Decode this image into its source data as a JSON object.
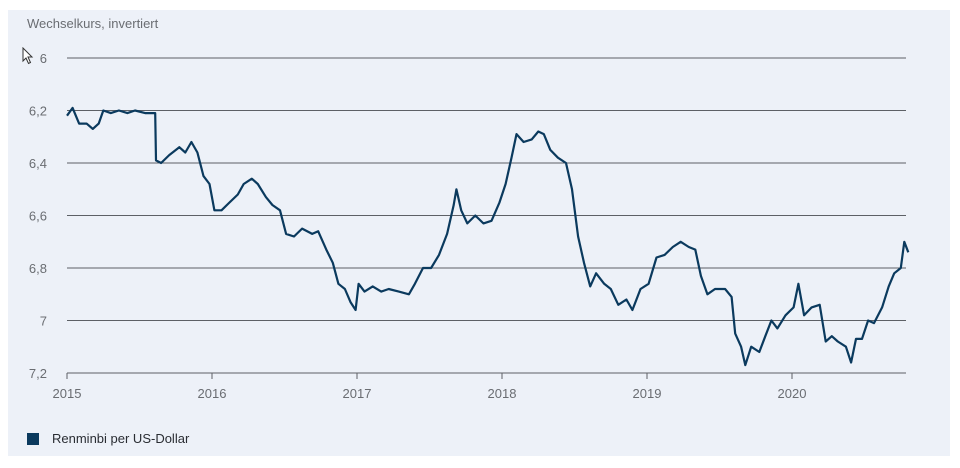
{
  "chart_data": {
    "type": "line",
    "title": "Wechselkurs, invertiert",
    "ylabel": "",
    "xlabel": "",
    "y_inverted": true,
    "ylim": [
      6,
      7.2
    ],
    "xlim": [
      "2015-01-01",
      "2020-10-25"
    ],
    "y_ticks": [
      "6",
      "6,2",
      "6,4",
      "6,6",
      "6,8",
      "7",
      "7,2"
    ],
    "x_ticks": [
      "2015",
      "2016",
      "2017",
      "2018",
      "2019",
      "2020"
    ],
    "grid": "horizontal",
    "legend_position": "bottom-left",
    "series": [
      {
        "name": "Renminbi per US-Dollar",
        "color": "#0b3a5e",
        "points": [
          [
            "2015-01-01",
            6.22
          ],
          [
            "2015-01-15",
            6.19
          ],
          [
            "2015-02-01",
            6.25
          ],
          [
            "2015-02-20",
            6.25
          ],
          [
            "2015-03-05",
            6.27
          ],
          [
            "2015-03-20",
            6.25
          ],
          [
            "2015-04-01",
            6.2
          ],
          [
            "2015-04-20",
            6.21
          ],
          [
            "2015-05-10",
            6.2
          ],
          [
            "2015-06-01",
            6.21
          ],
          [
            "2015-06-20",
            6.2
          ],
          [
            "2015-07-15",
            6.21
          ],
          [
            "2015-08-10",
            6.21
          ],
          [
            "2015-08-12",
            6.39
          ],
          [
            "2015-08-25",
            6.4
          ],
          [
            "2015-09-15",
            6.37
          ],
          [
            "2015-10-10",
            6.34
          ],
          [
            "2015-10-25",
            6.36
          ],
          [
            "2015-11-10",
            6.32
          ],
          [
            "2015-11-25",
            6.36
          ],
          [
            "2015-12-10",
            6.45
          ],
          [
            "2015-12-25",
            6.48
          ],
          [
            "2016-01-07",
            6.58
          ],
          [
            "2016-01-25",
            6.58
          ],
          [
            "2016-02-15",
            6.55
          ],
          [
            "2016-03-05",
            6.52
          ],
          [
            "2016-03-20",
            6.48
          ],
          [
            "2016-04-10",
            6.46
          ],
          [
            "2016-04-25",
            6.48
          ],
          [
            "2016-05-15",
            6.53
          ],
          [
            "2016-06-01",
            6.56
          ],
          [
            "2016-06-20",
            6.58
          ],
          [
            "2016-07-05",
            6.67
          ],
          [
            "2016-07-25",
            6.68
          ],
          [
            "2016-08-15",
            6.65
          ],
          [
            "2016-09-10",
            6.67
          ],
          [
            "2016-09-25",
            6.66
          ],
          [
            "2016-10-15",
            6.73
          ],
          [
            "2016-11-01",
            6.78
          ],
          [
            "2016-11-15",
            6.86
          ],
          [
            "2016-12-01",
            6.88
          ],
          [
            "2016-12-15",
            6.93
          ],
          [
            "2016-12-28",
            6.96
          ],
          [
            "2017-01-05",
            6.86
          ],
          [
            "2017-01-20",
            6.89
          ],
          [
            "2017-02-10",
            6.87
          ],
          [
            "2017-03-01",
            6.89
          ],
          [
            "2017-03-20",
            6.88
          ],
          [
            "2017-04-15",
            6.89
          ],
          [
            "2017-05-10",
            6.9
          ],
          [
            "2017-05-25",
            6.86
          ],
          [
            "2017-06-15",
            6.8
          ],
          [
            "2017-07-05",
            6.8
          ],
          [
            "2017-07-25",
            6.75
          ],
          [
            "2017-08-15",
            6.67
          ],
          [
            "2017-09-01",
            6.56
          ],
          [
            "2017-09-08",
            6.5
          ],
          [
            "2017-09-20",
            6.58
          ],
          [
            "2017-10-05",
            6.63
          ],
          [
            "2017-10-25",
            6.6
          ],
          [
            "2017-11-15",
            6.63
          ],
          [
            "2017-12-05",
            6.62
          ],
          [
            "2017-12-25",
            6.55
          ],
          [
            "2018-01-10",
            6.48
          ],
          [
            "2018-01-25",
            6.38
          ],
          [
            "2018-02-07",
            6.29
          ],
          [
            "2018-02-25",
            6.32
          ],
          [
            "2018-03-15",
            6.31
          ],
          [
            "2018-04-01",
            6.28
          ],
          [
            "2018-04-15",
            6.29
          ],
          [
            "2018-05-01",
            6.35
          ],
          [
            "2018-05-20",
            6.38
          ],
          [
            "2018-06-10",
            6.4
          ],
          [
            "2018-06-25",
            6.5
          ],
          [
            "2018-07-10",
            6.68
          ],
          [
            "2018-07-25",
            6.78
          ],
          [
            "2018-08-10",
            6.87
          ],
          [
            "2018-08-25",
            6.82
          ],
          [
            "2018-09-15",
            6.86
          ],
          [
            "2018-10-01",
            6.88
          ],
          [
            "2018-10-20",
            6.94
          ],
          [
            "2018-11-10",
            6.92
          ],
          [
            "2018-11-25",
            6.96
          ],
          [
            "2018-12-15",
            6.88
          ],
          [
            "2019-01-05",
            6.86
          ],
          [
            "2019-01-25",
            6.76
          ],
          [
            "2019-02-15",
            6.75
          ],
          [
            "2019-03-05",
            6.72
          ],
          [
            "2019-03-25",
            6.7
          ],
          [
            "2019-04-15",
            6.72
          ],
          [
            "2019-05-01",
            6.73
          ],
          [
            "2019-05-15",
            6.83
          ],
          [
            "2019-06-01",
            6.9
          ],
          [
            "2019-06-20",
            6.88
          ],
          [
            "2019-07-15",
            6.88
          ],
          [
            "2019-08-01",
            6.91
          ],
          [
            "2019-08-10",
            7.05
          ],
          [
            "2019-08-25",
            7.1
          ],
          [
            "2019-09-05",
            7.17
          ],
          [
            "2019-09-20",
            7.1
          ],
          [
            "2019-10-10",
            7.12
          ],
          [
            "2019-10-25",
            7.06
          ],
          [
            "2019-11-10",
            7.0
          ],
          [
            "2019-11-25",
            7.03
          ],
          [
            "2019-12-15",
            6.98
          ],
          [
            "2020-01-05",
            6.95
          ],
          [
            "2020-01-17",
            6.86
          ],
          [
            "2020-02-01",
            6.98
          ],
          [
            "2020-02-20",
            6.95
          ],
          [
            "2020-03-10",
            6.94
          ],
          [
            "2020-03-25",
            7.08
          ],
          [
            "2020-04-10",
            7.06
          ],
          [
            "2020-04-25",
            7.08
          ],
          [
            "2020-05-15",
            7.1
          ],
          [
            "2020-05-28",
            7.16
          ],
          [
            "2020-06-10",
            7.07
          ],
          [
            "2020-06-25",
            7.07
          ],
          [
            "2020-07-10",
            7.0
          ],
          [
            "2020-07-25",
            7.01
          ],
          [
            "2020-08-15",
            6.95
          ],
          [
            "2020-09-01",
            6.87
          ],
          [
            "2020-09-15",
            6.82
          ],
          [
            "2020-10-01",
            6.8
          ],
          [
            "2020-10-10",
            6.7
          ],
          [
            "2020-10-20",
            6.74
          ]
        ]
      }
    ]
  },
  "cursor": "arrow-cursor-icon"
}
